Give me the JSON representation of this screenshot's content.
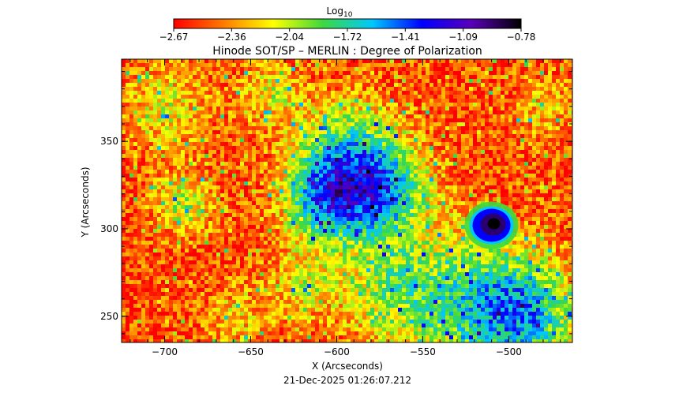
{
  "chart_data": {
    "type": "heatmap",
    "title": "Hinode SOT/SP – MERLIN : Degree of Polarization",
    "xlabel": "X (Arcseconds)",
    "ylabel": "Y (Arcseconds)",
    "timestamp": "21-Dec-2025 01:26:07.212",
    "xlim": [
      -725,
      -463
    ],
    "ylim": [
      235,
      397
    ],
    "xticks": [
      {
        "value": -700,
        "label": "−700"
      },
      {
        "value": -650,
        "label": "−650"
      },
      {
        "value": -600,
        "label": "−600"
      },
      {
        "value": -550,
        "label": "−550"
      },
      {
        "value": -500,
        "label": "−500"
      }
    ],
    "yticks": [
      {
        "value": 250,
        "label": "250"
      },
      {
        "value": 300,
        "label": "300"
      },
      {
        "value": 350,
        "label": "350"
      }
    ],
    "colorbar": {
      "label_base": "Log",
      "label_sub": "10",
      "range": [
        -2.67,
        -0.78
      ],
      "ticks": [
        "−2.67",
        "−2.36",
        "−2.04",
        "−1.72",
        "−1.41",
        "−1.09",
        "−0.78"
      ],
      "colors": [
        "#ff0000",
        "#ff7a00",
        "#ffff00",
        "#3ed93e",
        "#00c8ff",
        "#0000ff",
        "#5a00b8",
        "#000000"
      ]
    },
    "features": [
      {
        "type": "sunspot",
        "x": -510,
        "y": 302,
        "value": -0.78
      }
    ]
  }
}
